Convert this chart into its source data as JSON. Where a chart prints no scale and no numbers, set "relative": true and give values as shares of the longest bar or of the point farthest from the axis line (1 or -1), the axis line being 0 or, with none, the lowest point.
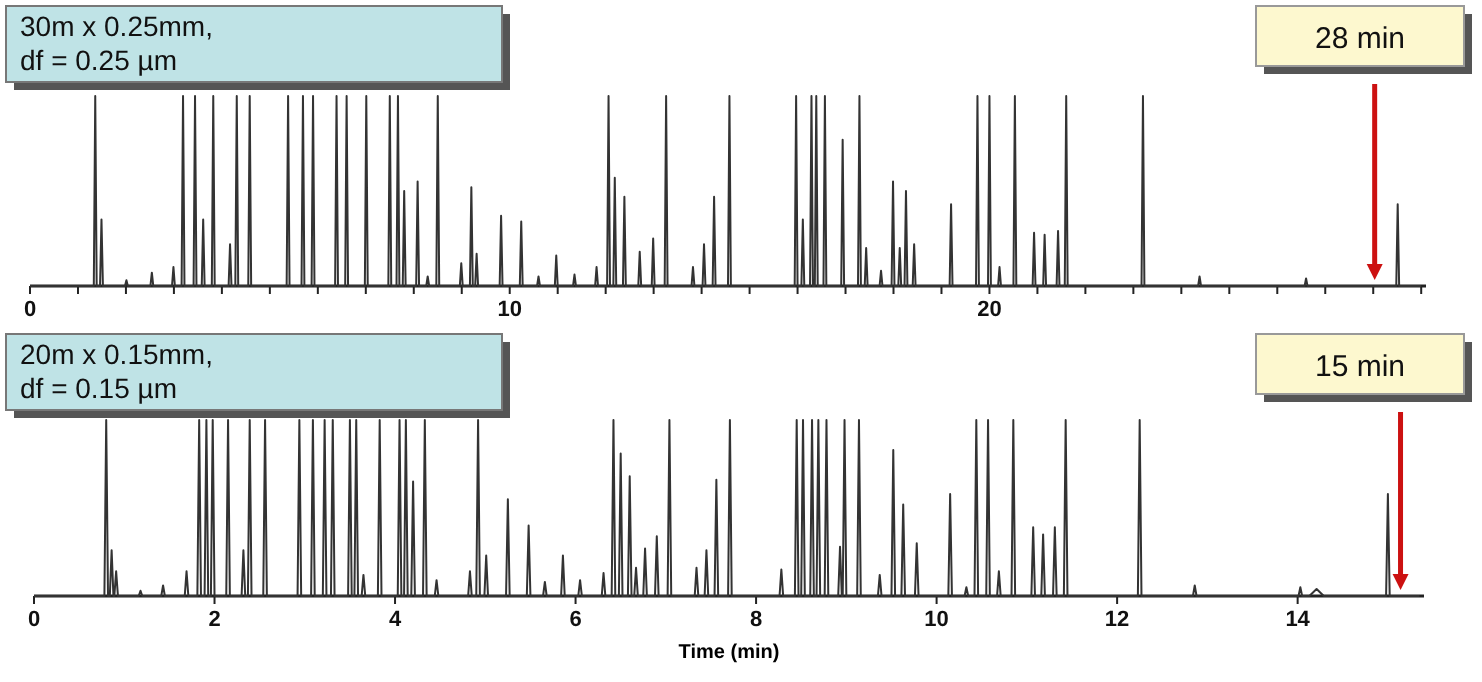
{
  "chart_data": [
    {
      "type": "line",
      "relative": true,
      "xlim": [
        0,
        29.1
      ],
      "xticks": [
        0,
        {
          "value": 1,
          "label": null
        },
        {
          "value": 2,
          "label": null
        },
        {
          "value": 3,
          "label": null
        },
        {
          "value": 4,
          "label": null
        },
        {
          "value": 5,
          "label": null
        },
        {
          "value": 6,
          "label": null
        },
        {
          "value": 7,
          "label": null
        },
        {
          "value": 8,
          "label": null
        },
        {
          "value": 9,
          "label": null
        },
        10,
        {
          "value": 11,
          "label": null
        },
        {
          "value": 12,
          "label": null
        },
        {
          "value": 13,
          "label": null
        },
        {
          "value": 14,
          "label": null
        },
        {
          "value": 15,
          "label": null
        },
        {
          "value": 16,
          "label": null
        },
        {
          "value": 17,
          "label": null
        },
        {
          "value": 18,
          "label": null
        },
        {
          "value": 19,
          "label": null
        },
        20,
        {
          "value": 21,
          "label": null
        },
        {
          "value": 22,
          "label": null
        },
        {
          "value": 23,
          "label": null
        },
        {
          "value": 24,
          "label": null
        },
        {
          "value": 25,
          "label": null
        },
        {
          "value": 26,
          "label": null
        },
        {
          "value": 27,
          "label": null
        },
        {
          "value": 28,
          "label": null
        },
        {
          "value": 29,
          "label": null
        }
      ],
      "annotations": [
        "30m x 0.25mm, df = 0.25 µm"
      ],
      "ref_lines": [
        {
          "axis": "x",
          "value": 28.03,
          "label": "28 min",
          "color": "#cc1111"
        }
      ],
      "series": [
        {
          "color": "#333333",
          "x": [
            0,
            1.33,
            1.36,
            1.39,
            1.46,
            1.49,
            1.52,
            1.98,
            2.01,
            2.04,
            2.51,
            2.54,
            2.57,
            2.96,
            2.99,
            3.02,
            3.16,
            3.19,
            3.22,
            3.41,
            3.44,
            3.47,
            3.58,
            3.61,
            3.64,
            3.79,
            3.82,
            3.85,
            4.14,
            4.17,
            4.2,
            4.28,
            4.31,
            4.34,
            4.55,
            4.58,
            4.61,
            5.35,
            5.38,
            5.41,
            5.66,
            5.69,
            5.72,
            5.87,
            5.9,
            5.93,
            6.36,
            6.39,
            6.42,
            6.57,
            6.6,
            6.63,
            6.98,
            7.01,
            7.04,
            7.47,
            7.5,
            7.53,
            7.64,
            7.67,
            7.7,
            7.77,
            7.8,
            7.83,
            8.05,
            8.08,
            8.11,
            8.26,
            8.29,
            8.32,
            8.47,
            8.5,
            8.53,
            8.96,
            8.99,
            9.02,
            9.17,
            9.2,
            9.23,
            9.28,
            9.31,
            9.34,
            9.79,
            9.82,
            9.85,
            10.21,
            10.24,
            10.27,
            10.57,
            10.6,
            10.63,
            10.94,
            10.97,
            11,
            11.32,
            11.35,
            11.38,
            11.78,
            11.81,
            11.84,
            12.03,
            12.06,
            12.09,
            12.16,
            12.19,
            12.22,
            12.36,
            12.39,
            12.42,
            12.68,
            12.71,
            12.74,
            12.96,
            12.99,
            13.02,
            13.23,
            13.26,
            13.29,
            13.79,
            13.82,
            13.85,
            14.02,
            14.05,
            14.08,
            14.23,
            14.26,
            14.29,
            14.55,
            14.58,
            14.61,
            15.94,
            15.97,
            16,
            16.08,
            16.11,
            16.14,
            16.26,
            16.29,
            16.32,
            16.36,
            16.39,
            16.42,
            16.54,
            16.57,
            16.6,
            16.91,
            16.94,
            16.97,
            17.26,
            17.29,
            17.32,
            17.4,
            17.43,
            17.46,
            17.71,
            17.74,
            17.77,
            17.96,
            17.99,
            18.02,
            18.1,
            18.13,
            18.16,
            18.23,
            18.26,
            18.29,
            18.4,
            18.43,
            18.46,
            19.17,
            19.2,
            19.23,
            19.72,
            19.75,
            19.78,
            19.97,
            20,
            20.03,
            20.18,
            20.21,
            20.24,
            20.5,
            20.53,
            20.56,
            20.9,
            20.93,
            20.96,
            21.12,
            21.15,
            21.18,
            21.4,
            21.43,
            21.46,
            21.57,
            21.6,
            21.63,
            23.17,
            23.2,
            23.23,
            24.35,
            24.38,
            24.41,
            26.57,
            26.6,
            26.63,
            28.48,
            28.51,
            28.54,
            29
          ],
          "values": [
            0,
            0,
            1,
            0,
            0,
            0.35,
            0,
            0,
            0.03,
            0,
            0,
            0.07,
            0,
            0,
            0.1,
            0,
            0,
            1,
            0,
            0,
            1,
            0,
            0,
            0.35,
            0,
            0,
            1,
            0,
            0,
            0.22,
            0,
            0,
            1,
            0,
            0,
            1,
            0,
            0,
            1,
            0,
            0,
            1,
            0,
            0,
            1,
            0,
            0,
            1,
            0,
            0,
            1,
            0,
            0,
            1,
            0,
            0,
            1,
            0,
            0,
            1,
            0,
            0,
            0.5,
            0,
            0,
            0.55,
            0,
            0,
            0.05,
            0,
            0,
            1,
            0,
            0,
            0.12,
            0,
            0,
            0.52,
            0,
            0,
            0.17,
            0,
            0,
            0.37,
            0,
            0,
            0.34,
            0,
            0,
            0.05,
            0,
            0,
            0.16,
            0,
            0,
            0.06,
            0,
            0,
            0.1,
            0,
            0,
            1,
            0,
            0,
            0.57,
            0,
            0,
            0.47,
            0,
            0,
            0.18,
            0,
            0,
            0.25,
            0,
            0,
            1,
            0,
            0,
            0.1,
            0,
            0,
            0.22,
            0,
            0,
            0.47,
            0,
            0,
            1,
            0,
            0,
            1,
            0,
            0,
            0.35,
            0,
            0,
            1,
            0,
            0,
            1,
            0,
            0,
            1,
            0,
            0,
            0.77,
            0,
            0,
            1,
            0,
            0,
            0.2,
            0,
            0,
            0.08,
            0,
            0,
            0.55,
            0,
            0,
            0.2,
            0,
            0,
            0.5,
            0,
            0,
            0.22,
            0,
            0,
            0.43,
            0,
            0,
            1,
            0,
            0,
            1,
            0,
            0,
            0.1,
            0,
            0,
            1,
            0,
            0,
            0.28,
            0,
            0,
            0.27,
            0,
            0,
            0.29,
            0,
            0,
            1,
            0,
            0,
            1,
            0,
            0,
            0.05,
            0,
            0,
            0.04,
            0,
            0,
            0.43,
            0,
            0
          ]
        }
      ]
    },
    {
      "type": "line",
      "relative": true,
      "xlim": [
        0,
        15.4
      ],
      "xticks": [
        0,
        2,
        4,
        6,
        8,
        10,
        12,
        14
      ],
      "xlabel": "Time (min)",
      "annotations": [
        "20m x 0.15mm, df = 0.15 µm"
      ],
      "ref_lines": [
        {
          "axis": "x",
          "value": 15.14,
          "label": "15 min",
          "color": "#cc1111"
        }
      ],
      "series": [
        {
          "color": "#333333",
          "x": [
            0,
            0.78,
            0.8,
            0.82,
            0.84,
            0.86,
            0.88,
            0.89,
            0.91,
            0.93,
            1.16,
            1.18,
            1.2,
            1.41,
            1.43,
            1.45,
            1.67,
            1.69,
            1.71,
            1.81,
            1.83,
            1.85,
            1.89,
            1.91,
            1.93,
            1.96,
            1.98,
            2,
            2.13,
            2.15,
            2.17,
            2.3,
            2.32,
            2.34,
            2.37,
            2.39,
            2.41,
            2.54,
            2.56,
            2.58,
            2.92,
            2.94,
            2.96,
            3.07,
            3.09,
            3.11,
            3.2,
            3.22,
            3.24,
            3.29,
            3.31,
            3.33,
            3.48,
            3.5,
            3.52,
            3.55,
            3.57,
            3.59,
            3.63,
            3.65,
            3.67,
            3.81,
            3.83,
            3.85,
            4.03,
            4.05,
            4.07,
            4.1,
            4.12,
            4.14,
            4.18,
            4.2,
            4.22,
            4.31,
            4.33,
            4.35,
            4.44,
            4.46,
            4.48,
            4.81,
            4.83,
            4.85,
            4.9,
            4.92,
            4.94,
            4.99,
            5.01,
            5.03,
            5.23,
            5.25,
            5.27,
            5.46,
            5.48,
            5.5,
            5.64,
            5.66,
            5.68,
            5.84,
            5.86,
            5.88,
            6.03,
            6.05,
            6.07,
            6.29,
            6.31,
            6.33,
            6.4,
            6.42,
            6.44,
            6.48,
            6.5,
            6.52,
            6.58,
            6.6,
            6.62,
            6.65,
            6.67,
            6.69,
            6.75,
            6.77,
            6.79,
            6.88,
            6.9,
            6.92,
            7.02,
            7.04,
            7.06,
            7.32,
            7.34,
            7.36,
            7.43,
            7.45,
            7.47,
            7.54,
            7.56,
            7.58,
            7.69,
            7.71,
            7.73,
            8.26,
            8.28,
            8.3,
            8.43,
            8.45,
            8.47,
            8.5,
            8.52,
            8.54,
            8.6,
            8.62,
            8.64,
            8.67,
            8.69,
            8.71,
            8.76,
            8.78,
            8.8,
            8.91,
            8.93,
            8.95,
            8.96,
            8.98,
            9,
            9.12,
            9.14,
            9.16,
            9.35,
            9.37,
            9.39,
            9.5,
            9.52,
            9.54,
            9.61,
            9.63,
            9.65,
            9.76,
            9.78,
            9.8,
            10.13,
            10.15,
            10.17,
            10.31,
            10.33,
            10.35,
            10.42,
            10.44,
            10.46,
            10.55,
            10.57,
            10.59,
            10.67,
            10.69,
            10.71,
            10.83,
            10.85,
            10.87,
            11.05,
            11.07,
            11.09,
            11.16,
            11.18,
            11.2,
            11.29,
            11.31,
            11.33,
            11.41,
            11.43,
            11.45,
            12.23,
            12.25,
            12.27,
            12.84,
            12.86,
            12.88,
            14.01,
            14.03,
            14.05,
            14.13,
            14.21,
            14.29,
            14.98,
            15,
            15.02,
            15.35
          ],
          "values": [
            0,
            0,
            1,
            0,
            0,
            0.26,
            0,
            0,
            0.14,
            0,
            0,
            0.03,
            0,
            0,
            0.06,
            0,
            0,
            0.14,
            0,
            0,
            1,
            0,
            0,
            1,
            0,
            0,
            1,
            0,
            0,
            1,
            0,
            0,
            0.26,
            0,
            0,
            1,
            0,
            0,
            1,
            0,
            0,
            1,
            0,
            0,
            1,
            0,
            0,
            1,
            0,
            0,
            1,
            0,
            0,
            1,
            0,
            0,
            1,
            0,
            0,
            0.12,
            0,
            0,
            1,
            0,
            0,
            1,
            0,
            0,
            1,
            0,
            0,
            0.65,
            0,
            0,
            1,
            0,
            0,
            0.09,
            0,
            0,
            0.14,
            0,
            0,
            1,
            0,
            0,
            0.23,
            0,
            0,
            0.55,
            0,
            0,
            0.4,
            0,
            0,
            0.08,
            0,
            0,
            0.23,
            0,
            0,
            0.09,
            0,
            0,
            0.13,
            0,
            0,
            1,
            0,
            0,
            0.81,
            0,
            0,
            0.68,
            0,
            0,
            0.16,
            0,
            0,
            0.27,
            0,
            0,
            0.34,
            0,
            0,
            1,
            0,
            0,
            0.16,
            0,
            0,
            0.26,
            0,
            0,
            0.66,
            0,
            0,
            1,
            0,
            0,
            0.15,
            0,
            0,
            1,
            0,
            0,
            1,
            0,
            0,
            1,
            0,
            0,
            1,
            0,
            0,
            1,
            0,
            0,
            0.28,
            0,
            0,
            1,
            0,
            0,
            1,
            0,
            0,
            0.12,
            0,
            0,
            0.83,
            0,
            0,
            0.52,
            0,
            0,
            0.3,
            0,
            0,
            0.58,
            0,
            0,
            0.05,
            0,
            0,
            1,
            0,
            0,
            1,
            0,
            0,
            0.14,
            0,
            0,
            1,
            0,
            0,
            0.39,
            0,
            0,
            0.35,
            0,
            0,
            0.39,
            0,
            0,
            1,
            0,
            0,
            1,
            0,
            0,
            0.06,
            0,
            0,
            0.05,
            0,
            0,
            0.04,
            0,
            0,
            0.58,
            0,
            0
          ]
        }
      ]
    }
  ]
}
